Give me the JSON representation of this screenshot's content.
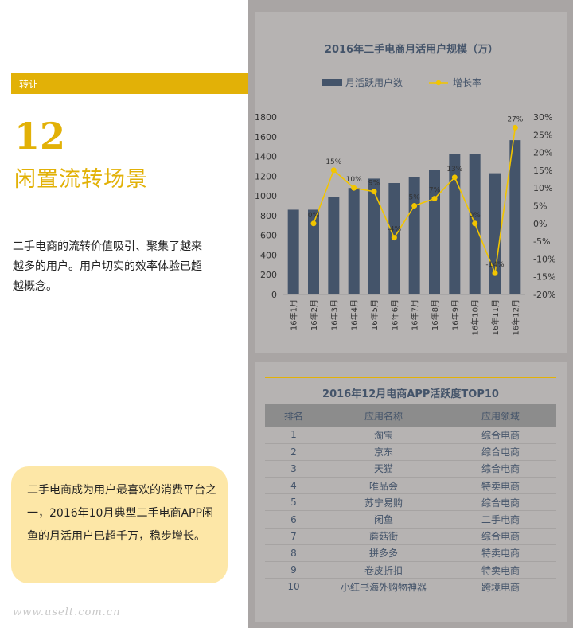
{
  "section": {
    "tab_label": "转让",
    "number": "12",
    "title": "闲置流转场景",
    "intro": "二手电商的流转价值吸引、聚集了越来越多的用户。用户切实的效率体验已超越概念。",
    "callout": "二手电商成为用户最喜欢的消费平台之一，2016年10月典型二手电商APP闲鱼的月活用户已超千万，稳步增长。",
    "watermark": "www.uselt.com.cn"
  },
  "colors": {
    "accent": "#e2b107",
    "bar": "#44546a",
    "line": "#f2c500",
    "panel": "#b6b3b2",
    "callout": "#fde7a7"
  },
  "chart_data": {
    "type": "bar",
    "title": "2016年二手电商月活用户规模（万）",
    "categories": [
      "16年1月",
      "16年2月",
      "16年3月",
      "16年4月",
      "16年5月",
      "16年6月",
      "16年7月",
      "16年8月",
      "16年9月",
      "16年10月",
      "16年11月",
      "16年12月"
    ],
    "series": [
      {
        "name": "月活跃用户数",
        "kind": "bar",
        "axis": "left",
        "values": [
          860,
          860,
          985,
          1080,
          1175,
          1130,
          1190,
          1265,
          1425,
          1425,
          1230,
          1565
        ]
      },
      {
        "name": "增长率",
        "kind": "line",
        "axis": "right",
        "values": [
          null,
          0,
          15,
          10,
          9,
          -4,
          5,
          7,
          13,
          0,
          -14,
          27
        ],
        "labels": [
          "",
          "0%",
          "15%",
          "10%",
          "9%",
          "-4%",
          "5%",
          "7%",
          "13%",
          "0%",
          "-14%",
          "27%"
        ]
      }
    ],
    "ylim": [
      0,
      1800
    ],
    "yticks": [
      0,
      200,
      400,
      600,
      800,
      1000,
      1200,
      1400,
      1600,
      1800
    ],
    "y2lim": [
      -20,
      30
    ],
    "y2ticks": [
      "-20%",
      "-15%",
      "-10%",
      "-5%",
      "0%",
      "5%",
      "10%",
      "15%",
      "20%",
      "25%",
      "30%"
    ],
    "legend": "top",
    "grid": false
  },
  "table": {
    "title": "2016年12月电商APP活跃度TOP10",
    "headers": [
      "排名",
      "应用名称",
      "应用领域"
    ],
    "rows": [
      [
        "1",
        "淘宝",
        "综合电商"
      ],
      [
        "2",
        "京东",
        "综合电商"
      ],
      [
        "3",
        "天猫",
        "综合电商"
      ],
      [
        "4",
        "唯品会",
        "特卖电商"
      ],
      [
        "5",
        "苏宁易购",
        "综合电商"
      ],
      [
        "6",
        "闲鱼",
        "二手电商"
      ],
      [
        "7",
        "蘑菇街",
        "综合电商"
      ],
      [
        "8",
        "拼多多",
        "特卖电商"
      ],
      [
        "9",
        "卷皮折扣",
        "特卖电商"
      ],
      [
        "10",
        "小红书海外购物神器",
        "跨境电商"
      ]
    ]
  }
}
